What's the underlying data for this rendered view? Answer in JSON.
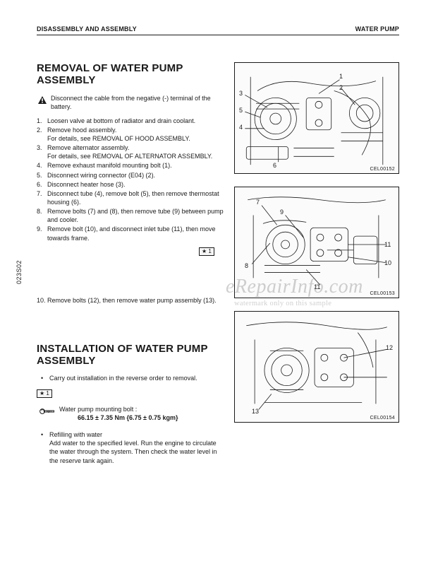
{
  "header": {
    "left": "DISASSEMBLY AND ASSEMBLY",
    "right": "WATER PUMP"
  },
  "side_code": "023S02",
  "removal": {
    "title": "REMOVAL OF WATER PUMP ASSEMBLY",
    "warning": "Disconnect the cable from the negative (-) terminal of the battery.",
    "steps_a": [
      "Loosen valve at bottom of radiator and drain coolant.",
      "Remove hood assembly.\nFor details, see REMOVAL OF HOOD ASSEMBLY.",
      "Remove alternator assembly.\nFor details, see REMOVAL OF ALTERNATOR ASSEMBLY.",
      "Remove exhaust manifold mounting bolt (1).",
      "Disconnect wiring connector (E04) (2).",
      "Disconnect heater hose (3).",
      "Disconnect tube (4), remove bolt (5), then remove thermostat housing (6).",
      "Remove bolts (7) and (8), then remove tube (9) between  pump and cooler.",
      "Remove bolt (10), and disconnect inlet tube (11), then move towards frame."
    ],
    "xref": "★ 1",
    "steps_b": [
      "Remove bolts (12), then remove water pump assembly (13)."
    ]
  },
  "install": {
    "title": "INSTALLATION OF WATER PUMP ASSEMBLY",
    "bullet1": "Carry out installation in the reverse order to removal.",
    "xref": "★ 1",
    "torque_label": "Water pump mounting bolt :",
    "torque_value": "66.15 ± 7.35 Nm {6.75 ± 0.75 kgm}",
    "bullet2_title": "Refilling with water",
    "bullet2_body": "Add water to the specified level. Run the engine to circulate the water through the system. Then check  the water level in the reserve tank again."
  },
  "figures": {
    "f1": {
      "code": "CEL00152",
      "callouts": [
        "1",
        "2",
        "3",
        "4",
        "5",
        "6"
      ]
    },
    "f2": {
      "code": "CEL00153",
      "callouts": [
        "7",
        "8",
        "9",
        "10",
        "11"
      ]
    },
    "f3": {
      "code": "CEL00154",
      "callouts": [
        "12",
        "13"
      ]
    }
  },
  "watermark": {
    "line1": "eRepairInfo.com",
    "line2": "watermark only on this sample"
  },
  "colors": {
    "text": "#1a1a1a",
    "bg": "#ffffff",
    "figure_bg": "#fbfbfb",
    "watermark": "rgba(120,120,120,0.35)"
  }
}
